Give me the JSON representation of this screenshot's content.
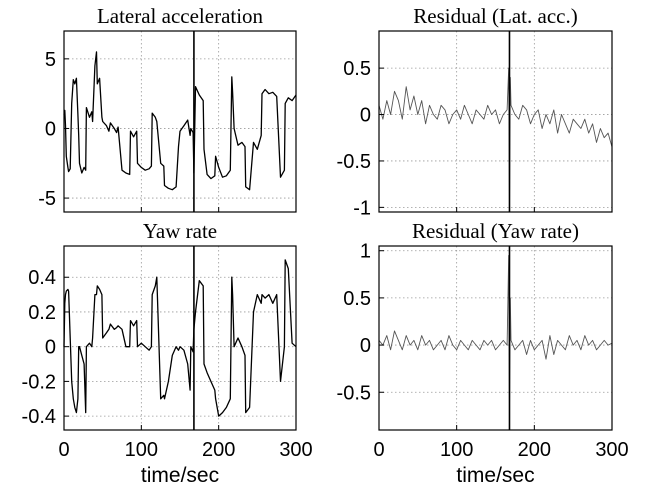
{
  "chart_data": [
    {
      "id": "lat",
      "type": "line",
      "title": "Lateral acceleration",
      "xlim": [
        0,
        300
      ],
      "ylim": [
        -6,
        7
      ],
      "xticks": [
        0,
        100,
        200,
        300
      ],
      "yticks": [
        -5,
        0,
        5
      ],
      "xticklabels": [],
      "yticklabels": [
        "-5",
        "0",
        "5"
      ],
      "xlabel": "",
      "grid": true,
      "series_color": "#000000",
      "event_x": 168,
      "series": [
        {
          "x": [
            0,
            1,
            2,
            3,
            5,
            6,
            8,
            10,
            12,
            14,
            16,
            18,
            19,
            20,
            23,
            26,
            28,
            29,
            33,
            36,
            37,
            40,
            42,
            43,
            46,
            49,
            50,
            55,
            58,
            60,
            65,
            68,
            70,
            75,
            80,
            85,
            86,
            90,
            94,
            95,
            100,
            105,
            110,
            113,
            114,
            118,
            120,
            125,
            129,
            130,
            135,
            140,
            145,
            148,
            150,
            155,
            160,
            163,
            164,
            167,
            168,
            170,
            175,
            180,
            181,
            185,
            190,
            195,
            196,
            200,
            205,
            210,
            215,
            217,
            218,
            220,
            225,
            230,
            234,
            235,
            240,
            245,
            250,
            255,
            256,
            260,
            265,
            270,
            275,
            280,
            285,
            286,
            290,
            295,
            300
          ],
          "values": [
            1.0,
            1.3,
            0.2,
            -2.0,
            -2.8,
            -3.1,
            -2.9,
            1.8,
            3.5,
            3.2,
            3.6,
            1.0,
            -0.5,
            -2.5,
            -3.2,
            -2.8,
            -3.0,
            1.5,
            0.8,
            1.2,
            0.5,
            4.5,
            5.5,
            3.2,
            3.6,
            0.8,
            0.5,
            0.2,
            -0.2,
            0.4,
            0.0,
            -0.3,
            0.1,
            -3.0,
            -3.2,
            -3.3,
            -0.2,
            -0.6,
            -0.2,
            -2.5,
            -2.8,
            -3.0,
            -2.9,
            -2.7,
            1.1,
            0.8,
            0.5,
            -2.5,
            -2.7,
            -4.1,
            -4.3,
            -4.4,
            -4.2,
            -1.3,
            -0.2,
            0.2,
            0.6,
            -0.5,
            0.0,
            -0.3,
            -3.2,
            3.0,
            2.4,
            2.0,
            -1.5,
            -3.3,
            -3.6,
            -3.4,
            -2.0,
            -2.8,
            -3.5,
            -3.4,
            -3.0,
            3.7,
            2.6,
            0.0,
            -1.2,
            -1.0,
            -1.3,
            -4.2,
            -4.4,
            -1.0,
            -1.5,
            -0.5,
            2.5,
            2.8,
            2.5,
            2.6,
            2.3,
            -3.5,
            -3.0,
            1.8,
            2.2,
            2.0,
            2.4
          ]
        }
      ]
    },
    {
      "id": "reslat",
      "type": "line",
      "title": "Residual (Lat. acc.)",
      "xlim": [
        0,
        300
      ],
      "ylim": [
        -1.05,
        0.9
      ],
      "xticks": [
        0,
        100,
        200,
        300
      ],
      "yticks": [
        -1,
        -0.5,
        0,
        0.5
      ],
      "xticklabels": [],
      "yticklabels": [
        "-1",
        "-0.5",
        "0",
        "0.5"
      ],
      "xlabel": "",
      "grid": true,
      "series_color": "#555555",
      "event_x": 168,
      "series": [
        {
          "x": [
            0,
            5,
            10,
            15,
            20,
            25,
            30,
            35,
            40,
            45,
            50,
            55,
            60,
            65,
            70,
            75,
            80,
            85,
            90,
            95,
            100,
            105,
            110,
            115,
            120,
            125,
            130,
            135,
            140,
            145,
            150,
            155,
            160,
            165,
            167,
            168,
            169,
            170,
            175,
            180,
            185,
            190,
            195,
            200,
            205,
            210,
            215,
            220,
            225,
            230,
            235,
            240,
            245,
            250,
            255,
            260,
            265,
            270,
            275,
            280,
            285,
            290,
            295,
            300
          ],
          "values": [
            0.1,
            -0.05,
            0.15,
            0.0,
            0.25,
            0.15,
            -0.05,
            0.3,
            0.05,
            0.2,
            0.0,
            0.15,
            -0.1,
            0.1,
            0.0,
            -0.05,
            0.1,
            0.05,
            -0.1,
            0.0,
            0.05,
            -0.05,
            0.1,
            0.0,
            -0.1,
            0.05,
            0.0,
            -0.05,
            0.1,
            0.0,
            0.05,
            -0.1,
            0.0,
            0.05,
            0.5,
            -1.0,
            0.4,
            0.1,
            0.0,
            -0.05,
            0.1,
            0.05,
            -0.1,
            0.0,
            0.05,
            -0.15,
            0.0,
            -0.1,
            0.05,
            -0.2,
            0.0,
            -0.1,
            -0.2,
            -0.05,
            -0.1,
            -0.15,
            -0.05,
            -0.2,
            -0.1,
            -0.3,
            -0.15,
            -0.25,
            -0.2,
            -0.35
          ]
        }
      ]
    },
    {
      "id": "yaw",
      "type": "line",
      "title": "Yaw rate",
      "xlim": [
        0,
        300
      ],
      "ylim": [
        -0.48,
        0.58
      ],
      "xticks": [
        0,
        100,
        200,
        300
      ],
      "yticks": [
        -0.4,
        -0.2,
        0,
        0.2,
        0.4
      ],
      "xticklabels": [
        "0",
        "100",
        "200",
        "300"
      ],
      "yticklabels": [
        "-0.4",
        "-0.2",
        "0",
        "0.2",
        "0.4"
      ],
      "xlabel": "time/sec",
      "grid": true,
      "series_color": "#000000",
      "event_x": 168,
      "series": [
        {
          "x": [
            0,
            1,
            2,
            3,
            5,
            6,
            8,
            10,
            12,
            14,
            16,
            18,
            19,
            20,
            23,
            26,
            28,
            29,
            33,
            36,
            37,
            40,
            42,
            43,
            46,
            49,
            50,
            55,
            58,
            60,
            65,
            68,
            70,
            75,
            80,
            85,
            86,
            90,
            94,
            95,
            100,
            105,
            110,
            113,
            114,
            118,
            120,
            125,
            129,
            130,
            135,
            140,
            145,
            148,
            150,
            155,
            160,
            163,
            164,
            167,
            168,
            170,
            175,
            180,
            181,
            185,
            190,
            195,
            196,
            200,
            205,
            210,
            215,
            217,
            218,
            220,
            225,
            230,
            234,
            235,
            240,
            245,
            250,
            255,
            256,
            260,
            265,
            270,
            275,
            280,
            285,
            286,
            290,
            295,
            300
          ],
          "values": [
            0.0,
            0.25,
            0.3,
            0.32,
            0.33,
            0.32,
            0.05,
            -0.2,
            -0.3,
            -0.35,
            -0.38,
            -0.3,
            0.0,
            0.0,
            -0.05,
            -0.1,
            -0.38,
            0.0,
            0.02,
            0.0,
            0.05,
            0.3,
            0.3,
            0.35,
            0.33,
            0.3,
            0.05,
            0.08,
            0.1,
            0.13,
            0.1,
            0.11,
            0.12,
            0.1,
            0.0,
            0.0,
            0.15,
            0.12,
            0.15,
            0.0,
            0.02,
            0.0,
            -0.02,
            0.0,
            0.3,
            0.35,
            0.4,
            -0.3,
            -0.28,
            -0.3,
            -0.2,
            -0.05,
            0.0,
            -0.02,
            0.0,
            -0.02,
            -0.1,
            -0.25,
            0.0,
            -0.03,
            0.1,
            0.2,
            0.38,
            0.35,
            -0.1,
            -0.15,
            -0.2,
            -0.25,
            -0.3,
            -0.4,
            -0.38,
            -0.35,
            -0.3,
            0.4,
            0.3,
            0.0,
            0.05,
            0.0,
            -0.05,
            -0.38,
            -0.35,
            0.2,
            0.3,
            0.25,
            0.3,
            0.28,
            0.3,
            0.25,
            0.3,
            -0.2,
            0.0,
            0.5,
            0.45,
            0.02,
            0.0
          ]
        }
      ]
    },
    {
      "id": "resyaw",
      "type": "line",
      "title": "Residual (Yaw rate)",
      "xlim": [
        0,
        300
      ],
      "ylim": [
        -0.9,
        1.05
      ],
      "xticks": [
        0,
        100,
        200,
        300
      ],
      "yticks": [
        -0.5,
        0,
        0.5,
        1
      ],
      "xticklabels": [
        "0",
        "100",
        "200",
        "300"
      ],
      "yticklabels": [
        "-0.5",
        "0",
        "0.5",
        "1"
      ],
      "xlabel": "time/sec",
      "grid": true,
      "series_color": "#555555",
      "event_x": 168,
      "series": [
        {
          "x": [
            0,
            5,
            10,
            15,
            20,
            25,
            30,
            35,
            40,
            45,
            50,
            55,
            60,
            65,
            70,
            75,
            80,
            85,
            90,
            95,
            100,
            105,
            110,
            115,
            120,
            125,
            130,
            135,
            140,
            145,
            150,
            155,
            160,
            165,
            167,
            168,
            169,
            170,
            175,
            180,
            185,
            190,
            195,
            200,
            205,
            210,
            215,
            220,
            225,
            230,
            235,
            240,
            245,
            250,
            255,
            260,
            265,
            270,
            275,
            280,
            285,
            290,
            295,
            300
          ],
          "values": [
            0.05,
            0.0,
            0.1,
            -0.05,
            0.15,
            0.05,
            -0.05,
            0.1,
            0.0,
            0.05,
            -0.05,
            0.1,
            0.0,
            0.05,
            -0.05,
            0.0,
            0.05,
            -0.05,
            0.1,
            0.0,
            -0.05,
            0.05,
            0.0,
            -0.05,
            0.05,
            0.0,
            -0.05,
            0.05,
            0.0,
            0.05,
            -0.05,
            0.0,
            0.05,
            0.0,
            0.95,
            -0.7,
            0.5,
            0.05,
            -0.05,
            0.0,
            0.05,
            -0.1,
            0.05,
            -0.05,
            0.0,
            0.05,
            -0.15,
            0.1,
            -0.1,
            0.05,
            0.0,
            -0.05,
            0.1,
            0.0,
            0.05,
            -0.05,
            0.1,
            0.0,
            0.05,
            -0.05,
            0.0,
            0.05,
            0.0,
            0.02
          ]
        }
      ]
    }
  ]
}
